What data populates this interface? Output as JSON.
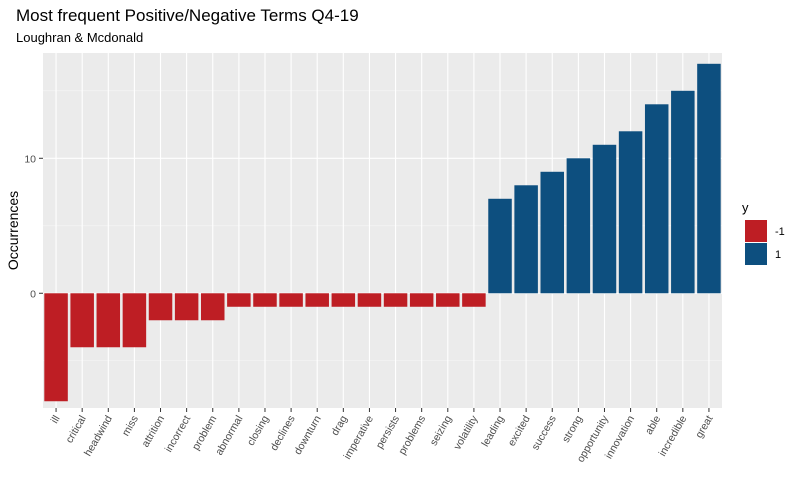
{
  "chart_data": {
    "type": "bar",
    "title": "Most frequent Positive/Negative Terms Q4-19",
    "subtitle": "Loughran & Mcdonald",
    "ylabel": "Occurrences",
    "xlabel": "",
    "ylim": [
      -8.5,
      17.8
    ],
    "yticks": [
      0,
      10
    ],
    "grid": true,
    "legend": {
      "title": "y",
      "position": "right",
      "entries": [
        {
          "label": "-1",
          "color": "#BE1E24"
        },
        {
          "label": "1",
          "color": "#0D4F7F"
        }
      ]
    },
    "categories": [
      "ill",
      "critical",
      "headwind",
      "miss",
      "attrition",
      "incorrect",
      "problem",
      "abnormal",
      "closing",
      "declines",
      "downturn",
      "drag",
      "imperative",
      "persists",
      "problems",
      "seizing",
      "volatility",
      "leading",
      "excited",
      "success",
      "strong",
      "opportunity",
      "innovation",
      "able",
      "incredible",
      "great"
    ],
    "values": [
      -8,
      -4,
      -4,
      -4,
      -2,
      -2,
      -2,
      -1,
      -1,
      -1,
      -1,
      -1,
      -1,
      -1,
      -1,
      -1,
      -1,
      7,
      8,
      9,
      10,
      11,
      12,
      14,
      15,
      17
    ],
    "groups": [
      "-1",
      "-1",
      "-1",
      "-1",
      "-1",
      "-1",
      "-1",
      "-1",
      "-1",
      "-1",
      "-1",
      "-1",
      "-1",
      "-1",
      "-1",
      "-1",
      "-1",
      "1",
      "1",
      "1",
      "1",
      "1",
      "1",
      "1",
      "1",
      "1"
    ]
  }
}
